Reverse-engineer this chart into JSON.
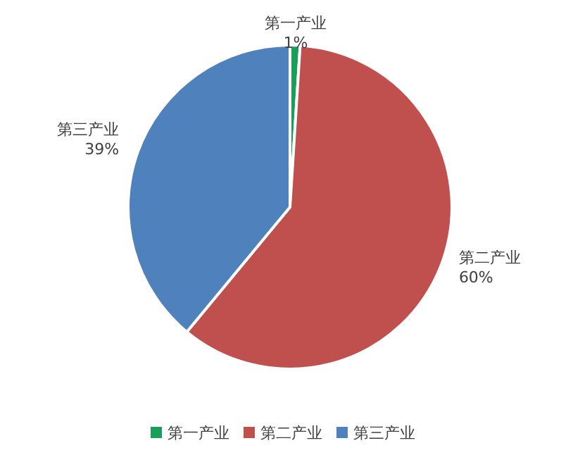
{
  "chart_data": {
    "type": "pie",
    "categories": [
      "第一产业",
      "第二产业",
      "第三产业"
    ],
    "values": [
      1,
      60,
      39
    ],
    "value_labels": [
      "1%",
      "60%",
      "39%"
    ],
    "colors": [
      "#1a9e5a",
      "#c0504d",
      "#4f81bd"
    ],
    "legend": "bottom"
  }
}
